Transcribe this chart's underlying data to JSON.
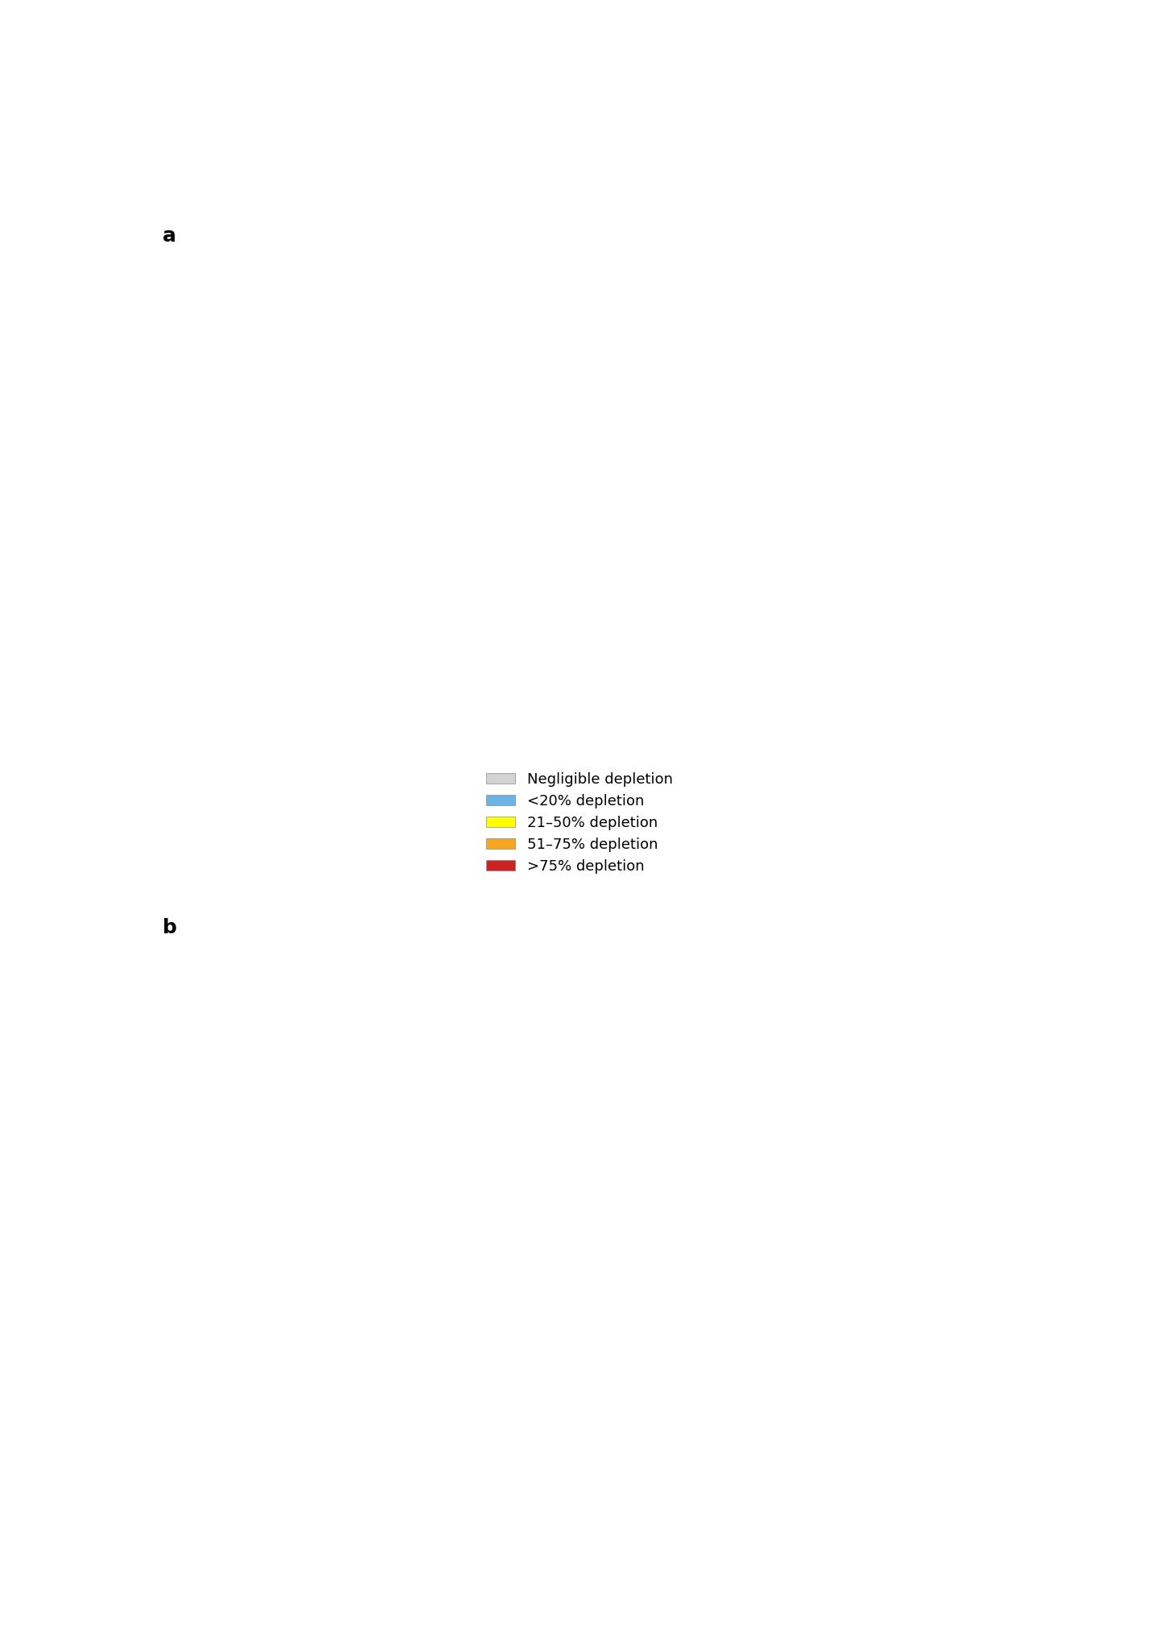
{
  "title_a": "a",
  "title_b": "b",
  "legend_labels": [
    "Negligible depletion",
    "<20% depletion",
    "21–50% depletion",
    "51–75% depletion",
    ">75% depletion"
  ],
  "legend_colors": [
    "#d3d3d3",
    "#6ab4e8",
    "#ffff00",
    "#f5a623",
    "#cc2222"
  ],
  "background_color": "#ffffff",
  "state_border_color": "#000000",
  "state_border_lw": 1.5,
  "highlighted_border_lw": 2.8,
  "figsize": [
    14.4,
    20.44
  ],
  "dpi": 100
}
